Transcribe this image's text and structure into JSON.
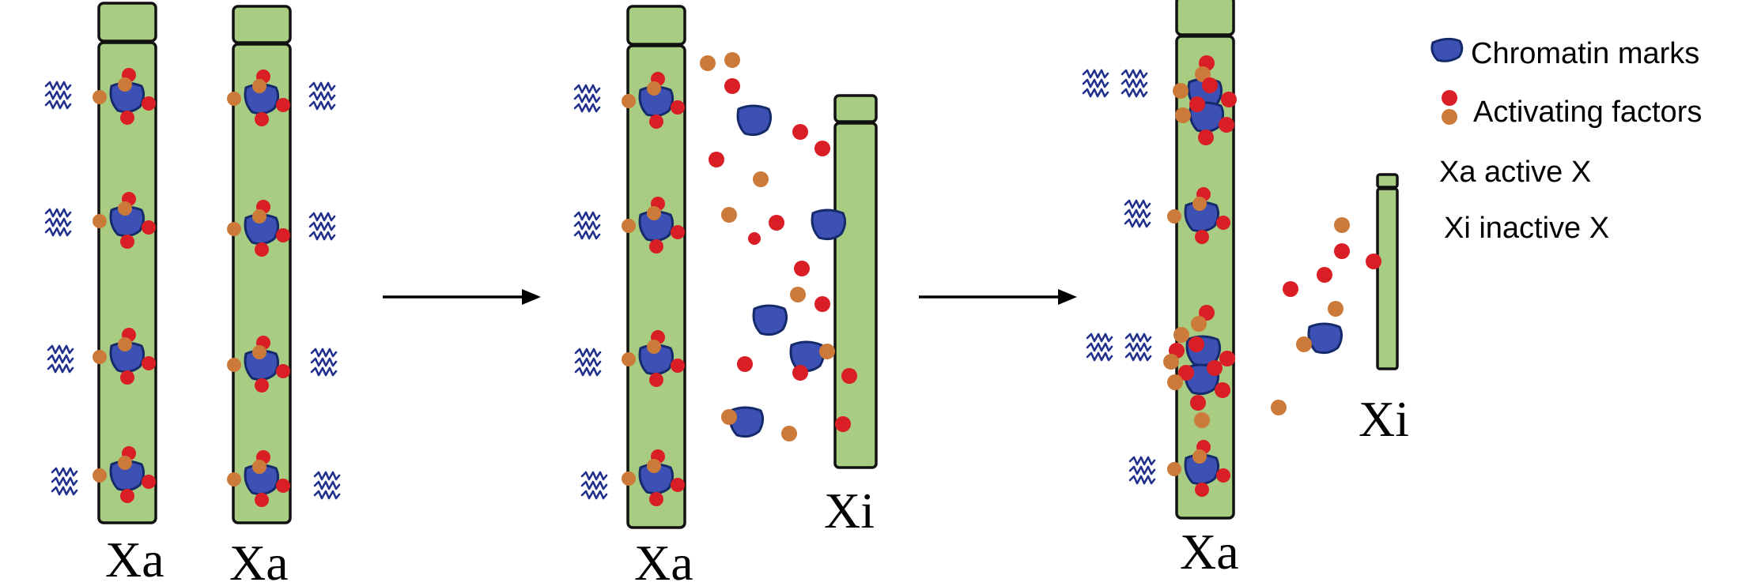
{
  "legend": {
    "chromatin_marks": "Chromatin marks",
    "activating_factors": "Activating factors",
    "xa_active": "Xa active X",
    "xi_inactive": "Xi inactive X"
  },
  "stage1": {
    "label_left": "Xa",
    "label_right": "Xa"
  },
  "stage2": {
    "label_xa": "Xa",
    "label_xi": "Xi"
  },
  "stage3": {
    "label_xa": "Xa",
    "label_xi": "Xi"
  },
  "colors": {
    "chromosome": "#a8cd82",
    "chromatin_mark": "#3d51b5",
    "factor_red": "#d91e26",
    "factor_orange": "#cc7a39",
    "transcription_wave": "#20308c"
  }
}
